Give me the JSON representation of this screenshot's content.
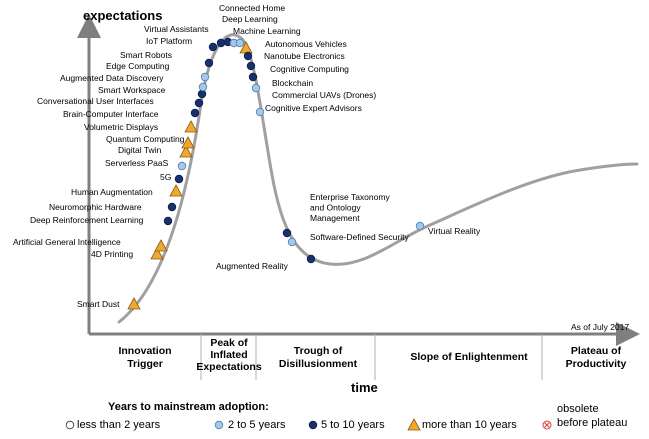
{
  "chart_data": {
    "type": "scatter",
    "title": "",
    "ylabel": "expectations",
    "xlabel": "time",
    "as_of": "As of July 2017",
    "phases": [
      "Innovation Trigger",
      "Peak of Inflated Expectations",
      "Trough of Disillusionment",
      "Slope of Enlightenment",
      "Plateau of Productivity"
    ],
    "legend": {
      "title": "Years to mainstream adoption:",
      "items": [
        {
          "key": "lt2",
          "label": "less than 2 years"
        },
        {
          "key": "2to5",
          "label": "2 to 5 years"
        },
        {
          "key": "5to10",
          "label": "5 to 10 years"
        },
        {
          "key": "gt10",
          "label": "more than 10 years"
        },
        {
          "key": "obsolete",
          "label": "obsolete before plateau"
        }
      ]
    },
    "colors": {
      "curve": "#a0a0a0",
      "lt2": "#ffffff",
      "2to5": "#a6c8e8",
      "5to10": "#17306e",
      "gt10": "#f0a830",
      "obsolete": "#d64545",
      "axis": "#7f7f7f"
    },
    "technologies": [
      {
        "name": "Smart Dust",
        "years": "gt10"
      },
      {
        "name": "4D Printing",
        "years": "gt10"
      },
      {
        "name": "Artificial General Intelligence",
        "years": "gt10"
      },
      {
        "name": "Deep Reinforcement Learning",
        "years": "5to10"
      },
      {
        "name": "Neuromorphic Hardware",
        "years": "5to10"
      },
      {
        "name": "Human Augmentation",
        "years": "gt10"
      },
      {
        "name": "5G",
        "years": "5to10"
      },
      {
        "name": "Serverless PaaS",
        "years": "2to5"
      },
      {
        "name": "Digital Twin",
        "years": "gt10"
      },
      {
        "name": "Quantum Computing",
        "years": "gt10"
      },
      {
        "name": "Volumetric Displays",
        "years": "gt10"
      },
      {
        "name": "Brain-Computer Interface",
        "years": "5to10"
      },
      {
        "name": "Conversational User Interfaces",
        "years": "5to10"
      },
      {
        "name": "Smart Workspace",
        "years": "5to10"
      },
      {
        "name": "Augmented Data Discovery",
        "years": "2to5"
      },
      {
        "name": "Edge Computing",
        "years": "2to5"
      },
      {
        "name": "Smart Robots",
        "years": "5to10"
      },
      {
        "name": "IoT Platform",
        "years": "5to10"
      },
      {
        "name": "Virtual Assistants",
        "years": "5to10"
      },
      {
        "name": "Connected Home",
        "years": "5to10"
      },
      {
        "name": "Deep Learning",
        "years": "2to5"
      },
      {
        "name": "Machine Learning",
        "years": "2to5"
      },
      {
        "name": "Autonomous Vehicles",
        "years": "gt10"
      },
      {
        "name": "Nanotube Electronics",
        "years": "5to10"
      },
      {
        "name": "Cognitive Computing",
        "years": "5to10"
      },
      {
        "name": "Blockchain",
        "years": "5to10"
      },
      {
        "name": "Commercial UAVs (Drones)",
        "years": "2to5"
      },
      {
        "name": "Cognitive Expert Advisors",
        "years": "2to5"
      },
      {
        "name": "Enterprise Taxonomy and Ontology Management",
        "years": "5to10"
      },
      {
        "name": "Software-Defined Security",
        "years": "2to5"
      },
      {
        "name": "Augmented Reality",
        "years": "5to10"
      },
      {
        "name": "Virtual Reality",
        "years": "2to5"
      }
    ]
  }
}
